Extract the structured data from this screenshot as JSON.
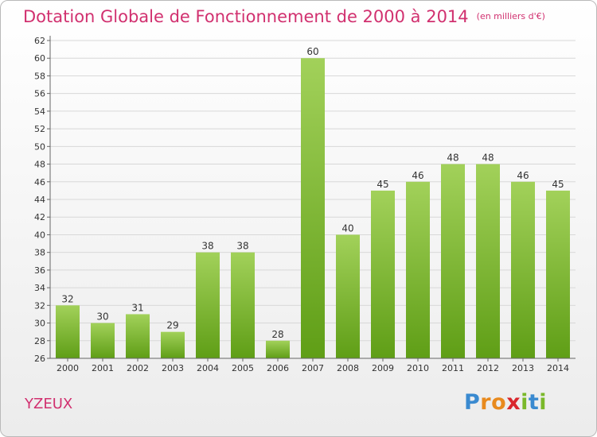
{
  "title": "Dotation Globale de Fonctionnement de 2000 à 2014",
  "subtitle": "(en milliers d'€)",
  "commune": "YZEUX",
  "logo": {
    "text": "Proxiti",
    "letters": [
      {
        "ch": "P",
        "color": "#3a8ad0"
      },
      {
        "ch": "r",
        "color": "#e88a1e"
      },
      {
        "ch": "o",
        "color": "#e88a1e"
      },
      {
        "ch": "x",
        "color": "#d9262c"
      },
      {
        "ch": "i",
        "color": "#7ab82a"
      },
      {
        "ch": "t",
        "color": "#3a8ad0"
      },
      {
        "ch": "i",
        "color": "#7ab82a"
      }
    ]
  },
  "colors": {
    "accent": "#d1306f",
    "bar_light": "#a2d15a",
    "bar_dark": "#5f9e16",
    "grid": "#d8d8d8",
    "axis_text": "#333333"
  },
  "chart_data": {
    "type": "bar",
    "title": "Dotation Globale de Fonctionnement de 2000 à 2014",
    "subtitle": "(en milliers d'€)",
    "xlabel": "",
    "ylabel": "",
    "categories": [
      "2000",
      "2001",
      "2002",
      "2003",
      "2004",
      "2005",
      "2006",
      "2007",
      "2008",
      "2009",
      "2010",
      "2011",
      "2012",
      "2013",
      "2014"
    ],
    "values": [
      32,
      30,
      31,
      29,
      38,
      38,
      28,
      60,
      40,
      45,
      46,
      48,
      48,
      46,
      45
    ],
    "ylim": [
      26,
      62
    ],
    "yticks": [
      26,
      28,
      30,
      32,
      34,
      36,
      38,
      40,
      42,
      44,
      46,
      48,
      50,
      52,
      54,
      56,
      58,
      60,
      62
    ],
    "grid": true,
    "legend": "none"
  }
}
